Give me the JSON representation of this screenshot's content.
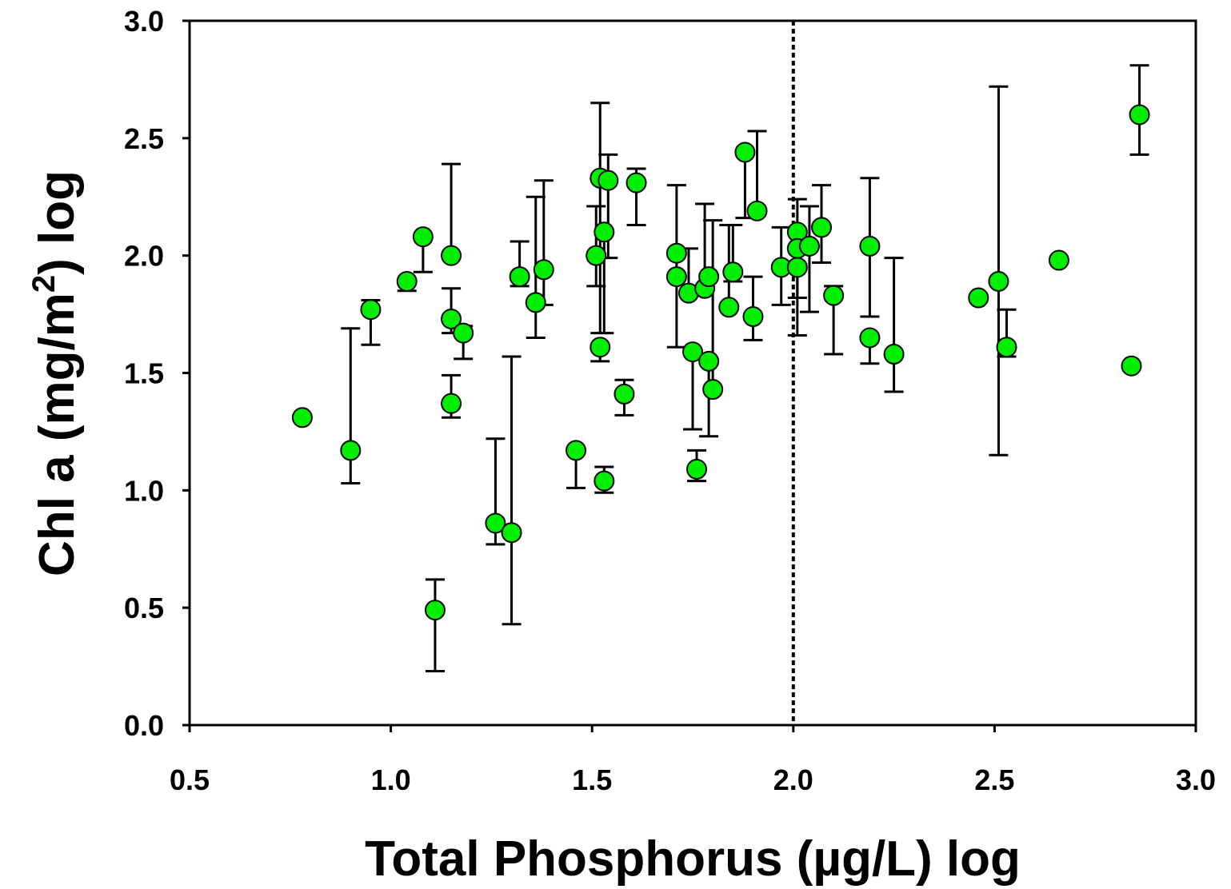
{
  "chart_data": {
    "type": "scatter",
    "xlabel": "Total Phosphorus (µg/L) log",
    "ylabel": [
      "Chl a (mg/m",
      "2",
      ") log"
    ],
    "x": [
      0.78,
      0.9,
      0.95,
      1.04,
      1.08,
      1.11,
      1.15,
      1.15,
      1.15,
      1.18,
      1.26,
      1.3,
      1.32,
      1.36,
      1.38,
      1.46,
      1.51,
      1.52,
      1.54,
      1.53,
      1.52,
      1.53,
      1.58,
      1.61,
      1.71,
      1.71,
      1.74,
      1.75,
      1.76,
      1.78,
      1.79,
      1.8,
      1.79,
      1.84,
      1.85,
      1.88,
      1.9,
      1.91,
      1.97,
      2.01,
      2.01,
      2.01,
      2.04,
      2.07,
      2.1,
      2.19,
      2.19,
      2.25,
      2.46,
      2.51,
      2.53,
      2.66,
      2.84,
      2.86
    ],
    "values": [
      1.31,
      1.17,
      1.77,
      1.89,
      2.08,
      0.49,
      2.0,
      1.73,
      1.37,
      1.67,
      0.86,
      0.82,
      1.91,
      1.8,
      1.94,
      1.17,
      2.0,
      2.33,
      2.32,
      2.1,
      1.61,
      1.04,
      1.41,
      2.31,
      2.01,
      1.91,
      1.84,
      1.59,
      1.09,
      1.86,
      1.55,
      1.43,
      1.91,
      1.78,
      1.93,
      2.44,
      1.74,
      2.19,
      1.95,
      2.1,
      2.03,
      1.95,
      2.04,
      2.12,
      1.83,
      2.04,
      1.65,
      1.58,
      1.82,
      1.89,
      1.61,
      1.98,
      1.53,
      2.6
    ],
    "y_err_upper": [
      null,
      0.52,
      0.04,
      null,
      null,
      0.13,
      0.39,
      0.13,
      0.12,
      0.03,
      0.36,
      0.75,
      0.15,
      0.45,
      0.38,
      null,
      0.21,
      0.32,
      0.11,
      null,
      null,
      0.06,
      0.06,
      0.06,
      0.29,
      null,
      0.19,
      null,
      0.08,
      0.36,
      null,
      0.72,
      null,
      0.35,
      0.2,
      null,
      0.17,
      0.34,
      0.17,
      0.14,
      null,
      null,
      0.17,
      0.18,
      0.04,
      0.29,
      null,
      0.41,
      null,
      0.83,
      0.16,
      null,
      null,
      0.21
    ],
    "y_err_lower": [
      null,
      0.14,
      0.15,
      0.04,
      0.15,
      0.26,
      null,
      0.06,
      0.06,
      0.11,
      0.09,
      0.39,
      0.04,
      0.15,
      0.15,
      0.16,
      0.13,
      0.66,
      0.33,
      0.43,
      0.06,
      0.05,
      0.09,
      0.18,
      0.4,
      null,
      null,
      0.33,
      0.05,
      null,
      0.32,
      null,
      null,
      null,
      0.04,
      0.28,
      0.1,
      null,
      0.16,
      0.44,
      null,
      0.13,
      0.28,
      0.15,
      0.25,
      0.3,
      0.11,
      0.16,
      null,
      0.74,
      0.04,
      null,
      null,
      0.17
    ],
    "color": "#00ee00",
    "reference_line_x": 2.0,
    "xlim": [
      0.5,
      3.0
    ],
    "ylim": [
      0,
      3.0
    ],
    "xticks": [
      0.5,
      {
        "value": 1,
        "label": "1.0"
      },
      1.5,
      {
        "value": 2,
        "label": "2.0"
      },
      2.5,
      {
        "value": 3,
        "label": "3.0"
      }
    ],
    "yticks": [
      {
        "value": 0,
        "label": "0.0"
      },
      0.5,
      {
        "value": 1,
        "label": "1.0"
      },
      1.5,
      {
        "value": 2,
        "label": "2.0"
      },
      2.5,
      {
        "value": 3,
        "label": "3.0"
      }
    ]
  }
}
